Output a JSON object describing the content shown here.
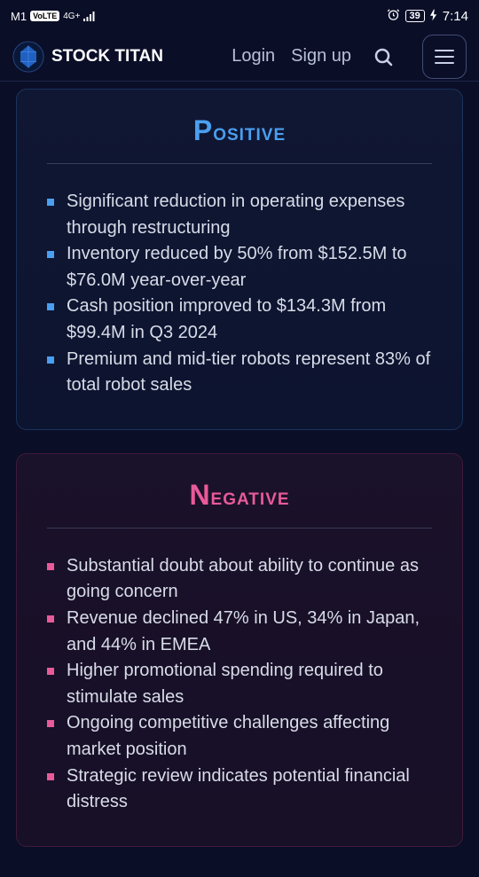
{
  "statusBar": {
    "carrier": "M1",
    "volte": "VoLTE",
    "network": "4G+",
    "battery": "39",
    "time": "7:14"
  },
  "header": {
    "logoText": "STOCK TITAN",
    "login": "Login",
    "signup": "Sign up"
  },
  "positive": {
    "title": "Positive",
    "items": [
      "Significant reduction in operating expenses through restructuring",
      "Inventory reduced by 50% from $152.5M to $76.0M year-over-year",
      "Cash position improved to $134.3M from $99.4M in Q3 2024",
      "Premium and mid-tier robots represent 83% of total robot sales"
    ]
  },
  "negative": {
    "title": "Negative",
    "items": [
      "Substantial doubt about ability to continue as going concern",
      "Revenue declined 47% in US, 34% in Japan, and 44% in EMEA",
      "Higher promotional spending required to stimulate sales",
      "Ongoing competitive challenges affecting market position",
      "Strategic review indicates potential financial distress"
    ]
  },
  "colors": {
    "positiveAccent": "#4a9ff0",
    "negativeAccent": "#e85a9a",
    "background": "#0a0e27"
  }
}
